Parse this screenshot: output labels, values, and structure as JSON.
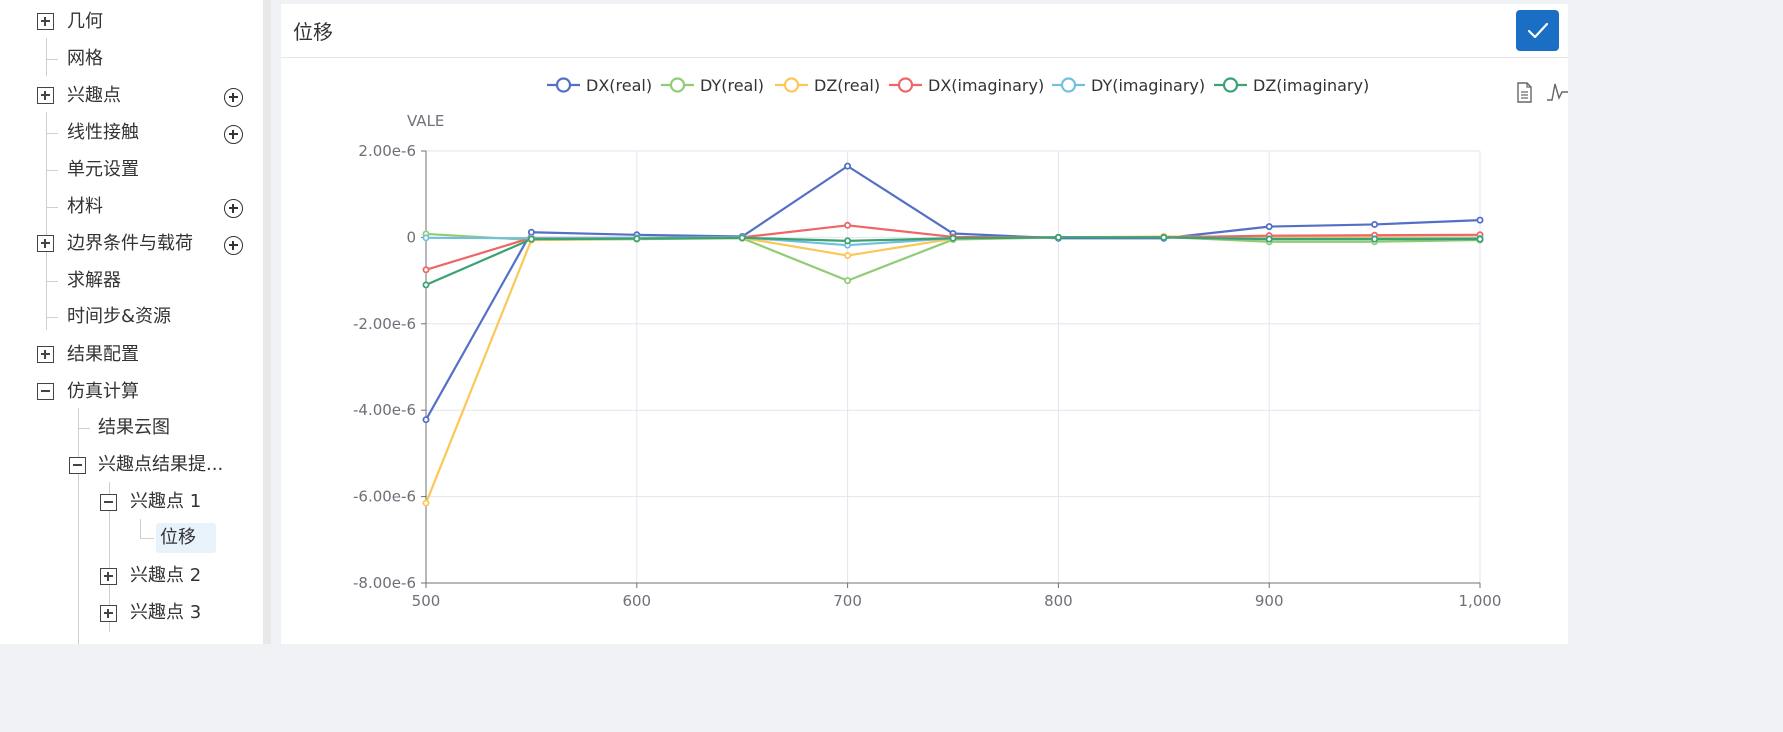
{
  "sidebar": {
    "items": [
      {
        "label": "几何"
      },
      {
        "label": "网格"
      },
      {
        "label": "兴趣点"
      },
      {
        "label": "线性接触"
      },
      {
        "label": "单元设置"
      },
      {
        "label": "材料"
      },
      {
        "label": "边界条件与载荷"
      },
      {
        "label": "求解器"
      },
      {
        "label": "时间步&资源"
      },
      {
        "label": "结果配置"
      },
      {
        "label": "仿真计算"
      },
      {
        "label": "结果云图"
      },
      {
        "label": "兴趣点结果提..."
      },
      {
        "label": "兴趣点 1"
      },
      {
        "label": "位移"
      },
      {
        "label": "兴趣点 2"
      },
      {
        "label": "兴趣点 3"
      }
    ]
  },
  "panel": {
    "title": "位移",
    "confirm_icon": "check-icon",
    "toolbar_icons": [
      "data-view-icon",
      "line-chart-icon"
    ]
  },
  "chart_data": {
    "type": "line",
    "ylabel": "VALE",
    "x": [
      500,
      550,
      600,
      650,
      700,
      750,
      800,
      850,
      900,
      950,
      1000
    ],
    "xlim": [
      500,
      1000
    ],
    "ylim": [
      -8e-06,
      2e-06
    ],
    "x_ticks": [
      "500",
      "600",
      "700",
      "800",
      "900",
      "1,000"
    ],
    "x_tick_values": [
      500,
      600,
      700,
      800,
      900,
      1000
    ],
    "y_ticks": [
      "2.00e-6",
      "0",
      "-2.00e-6",
      "-4.00e-6",
      "-6.00e-6",
      "-8.00e-6"
    ],
    "y_tick_values": [
      2e-06,
      0,
      -2e-06,
      -4e-06,
      -6e-06,
      -8e-06
    ],
    "grid": true,
    "legend_position": "top",
    "series": [
      {
        "name": "DX(real)",
        "color": "#5470c6",
        "values": [
          -4.22e-06,
          1.2e-07,
          6e-08,
          2e-08,
          1.65e-06,
          9e-08,
          -2e-08,
          -2e-08,
          2.5e-07,
          3e-07,
          4e-07
        ]
      },
      {
        "name": "DY(real)",
        "color": "#91cc75",
        "values": [
          8e-08,
          -6e-08,
          -4e-08,
          -2e-08,
          -1e-06,
          -5e-08,
          0.0,
          1e-08,
          -1e-07,
          -1e-07,
          -6e-08
        ]
      },
      {
        "name": "DZ(real)",
        "color": "#fac858",
        "values": [
          -6.15e-06,
          -6e-08,
          -3e-08,
          -1e-08,
          -4.2e-07,
          -3e-08,
          0.0,
          2e-08,
          0.0,
          0.0,
          0.0
        ]
      },
      {
        "name": "DX(imaginary)",
        "color": "#ee6666",
        "values": [
          -7.5e-07,
          -1e-08,
          -1e-08,
          0.0,
          2.8e-07,
          1e-08,
          0.0,
          0.0,
          4e-08,
          5e-08,
          6e-08
        ]
      },
      {
        "name": "DY(imaginary)",
        "color": "#73c0de",
        "values": [
          -1e-08,
          -2e-08,
          -1e-08,
          0.0,
          -1.8e-07,
          -2e-08,
          0.0,
          0.0,
          -3e-08,
          -3e-08,
          -2e-08
        ]
      },
      {
        "name": "DZ(imaginary)",
        "color": "#3ba272",
        "values": [
          -1.1e-06,
          -4e-08,
          -3e-08,
          -1e-08,
          -8e-08,
          -2e-08,
          0.0,
          0.0,
          -4e-08,
          -4e-08,
          -4e-08
        ]
      }
    ]
  }
}
